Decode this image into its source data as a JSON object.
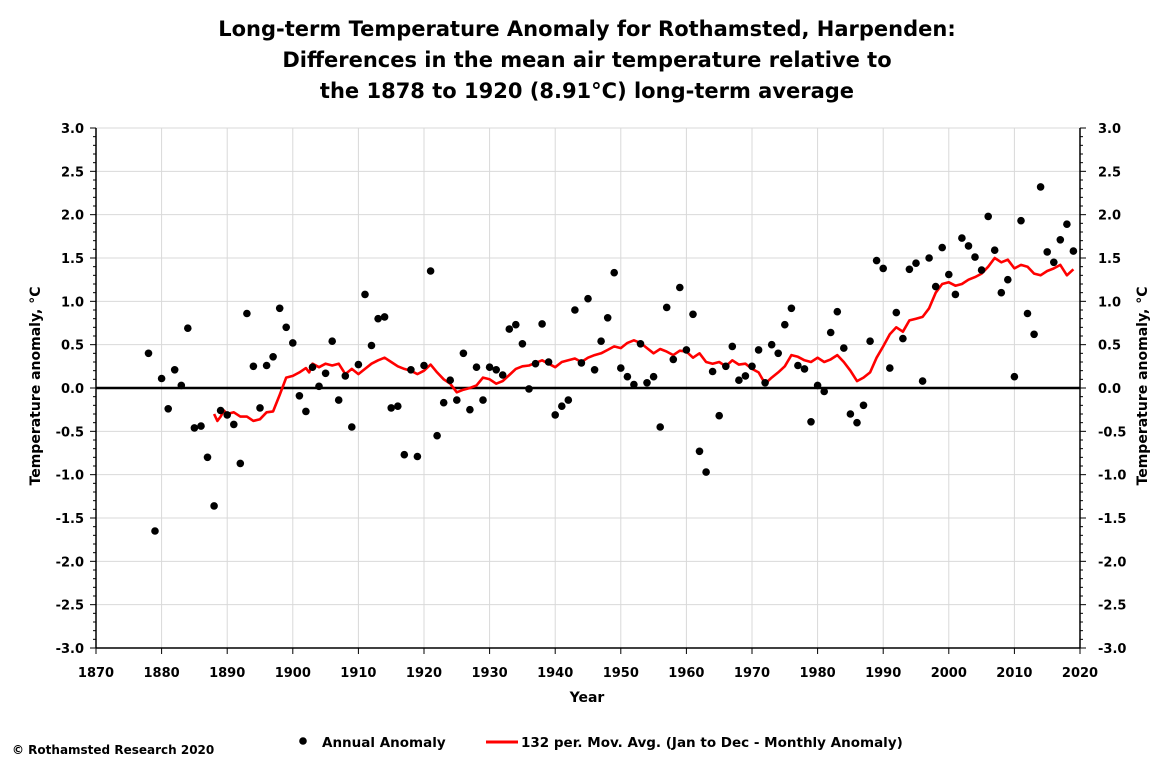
{
  "chart_data": {
    "type": "scatter",
    "title_lines": [
      "Long-term Temperature Anomaly for Rothamsted, Harpenden:",
      "Differences in the mean air temperature relative to",
      "the 1878 to 1920 (8.91°C) long-term average"
    ],
    "xlabel": "Year",
    "ylabel": "Temperature anomaly, °C",
    "xlim": [
      1870,
      2020
    ],
    "ylim": [
      -3.0,
      3.0
    ],
    "x_ticks": [
      "1870",
      "1880",
      "1890",
      "1900",
      "1910",
      "1920",
      "1930",
      "1940",
      "1950",
      "1960",
      "1970",
      "1980",
      "1990",
      "2000",
      "2010",
      "2020"
    ],
    "y_ticks": [
      "3.0",
      "2.5",
      "2.0",
      "1.5",
      "1.0",
      "0.5",
      "0.0",
      "-0.5",
      "-1.0",
      "-1.5",
      "-2.0",
      "-2.5",
      "-3.0"
    ],
    "grid": true,
    "legend_placement": "bottom",
    "colors": {
      "points": "#000000",
      "moving_average": "#ff0000",
      "grid": "#d9d9d9",
      "zero_line": "#000000"
    },
    "series": [
      {
        "name": "Annual Anomaly",
        "kind": "scatter",
        "points": [
          [
            1878,
            0.4
          ],
          [
            1879,
            -1.65
          ],
          [
            1880,
            0.11
          ],
          [
            1881,
            -0.24
          ],
          [
            1882,
            0.21
          ],
          [
            1883,
            0.03
          ],
          [
            1884,
            0.69
          ],
          [
            1885,
            -0.46
          ],
          [
            1886,
            -0.44
          ],
          [
            1887,
            -0.8
          ],
          [
            1888,
            -1.36
          ],
          [
            1889,
            -0.26
          ],
          [
            1890,
            -0.31
          ],
          [
            1891,
            -0.42
          ],
          [
            1892,
            -0.87
          ],
          [
            1893,
            0.86
          ],
          [
            1894,
            0.25
          ],
          [
            1895,
            -0.23
          ],
          [
            1896,
            0.26
          ],
          [
            1897,
            0.36
          ],
          [
            1898,
            0.92
          ],
          [
            1899,
            0.7
          ],
          [
            1900,
            0.52
          ],
          [
            1901,
            -0.09
          ],
          [
            1902,
            -0.27
          ],
          [
            1903,
            0.24
          ],
          [
            1904,
            0.02
          ],
          [
            1905,
            0.17
          ],
          [
            1906,
            0.54
          ],
          [
            1907,
            -0.14
          ],
          [
            1908,
            0.14
          ],
          [
            1909,
            -0.45
          ],
          [
            1910,
            0.27
          ],
          [
            1911,
            1.08
          ],
          [
            1912,
            0.49
          ],
          [
            1913,
            0.8
          ],
          [
            1914,
            0.82
          ],
          [
            1915,
            -0.23
          ],
          [
            1916,
            -0.21
          ],
          [
            1917,
            -0.77
          ],
          [
            1918,
            0.21
          ],
          [
            1919,
            -0.79
          ],
          [
            1920,
            0.26
          ],
          [
            1921,
            1.35
          ],
          [
            1922,
            -0.55
          ],
          [
            1923,
            -0.17
          ],
          [
            1924,
            0.09
          ],
          [
            1925,
            -0.14
          ],
          [
            1926,
            0.4
          ],
          [
            1927,
            -0.25
          ],
          [
            1928,
            0.24
          ],
          [
            1929,
            -0.14
          ],
          [
            1930,
            0.24
          ],
          [
            1931,
            0.21
          ],
          [
            1932,
            0.15
          ],
          [
            1933,
            0.68
          ],
          [
            1934,
            0.73
          ],
          [
            1935,
            0.51
          ],
          [
            1936,
            -0.01
          ],
          [
            1937,
            0.28
          ],
          [
            1938,
            0.74
          ],
          [
            1939,
            0.3
          ],
          [
            1940,
            -0.31
          ],
          [
            1941,
            -0.21
          ],
          [
            1942,
            -0.14
          ],
          [
            1943,
            0.9
          ],
          [
            1944,
            0.29
          ],
          [
            1945,
            1.03
          ],
          [
            1946,
            0.21
          ],
          [
            1947,
            0.54
          ],
          [
            1948,
            0.81
          ],
          [
            1949,
            1.33
          ],
          [
            1950,
            0.23
          ],
          [
            1951,
            0.13
          ],
          [
            1952,
            0.04
          ],
          [
            1953,
            0.51
          ],
          [
            1954,
            0.06
          ],
          [
            1955,
            0.13
          ],
          [
            1956,
            -0.45
          ],
          [
            1957,
            0.93
          ],
          [
            1958,
            0.33
          ],
          [
            1959,
            1.16
          ],
          [
            1960,
            0.44
          ],
          [
            1961,
            0.85
          ],
          [
            1962,
            -0.73
          ],
          [
            1963,
            -0.97
          ],
          [
            1964,
            0.19
          ],
          [
            1965,
            -0.32
          ],
          [
            1966,
            0.25
          ],
          [
            1967,
            0.48
          ],
          [
            1968,
            0.09
          ],
          [
            1969,
            0.14
          ],
          [
            1970,
            0.25
          ],
          [
            1971,
            0.44
          ],
          [
            1972,
            0.06
          ],
          [
            1973,
            0.5
          ],
          [
            1974,
            0.4
          ],
          [
            1975,
            0.73
          ],
          [
            1976,
            0.92
          ],
          [
            1977,
            0.26
          ],
          [
            1978,
            0.22
          ],
          [
            1979,
            -0.39
          ],
          [
            1980,
            0.03
          ],
          [
            1981,
            -0.04
          ],
          [
            1982,
            0.64
          ],
          [
            1983,
            0.88
          ],
          [
            1984,
            0.46
          ],
          [
            1985,
            -0.3
          ],
          [
            1986,
            -0.4
          ],
          [
            1987,
            -0.2
          ],
          [
            1988,
            0.54
          ],
          [
            1989,
            1.47
          ],
          [
            1990,
            1.38
          ],
          [
            1991,
            0.23
          ],
          [
            1992,
            0.87
          ],
          [
            1993,
            0.57
          ],
          [
            1994,
            1.37
          ],
          [
            1995,
            1.44
          ],
          [
            1996,
            0.08
          ],
          [
            1997,
            1.5
          ],
          [
            1998,
            1.17
          ],
          [
            1999,
            1.62
          ],
          [
            2000,
            1.31
          ],
          [
            2001,
            1.08
          ],
          [
            2002,
            1.73
          ],
          [
            2003,
            1.64
          ],
          [
            2004,
            1.51
          ],
          [
            2005,
            1.36
          ],
          [
            2006,
            1.98
          ],
          [
            2007,
            1.59
          ],
          [
            2008,
            1.1
          ],
          [
            2009,
            1.25
          ],
          [
            2010,
            0.13
          ],
          [
            2011,
            1.93
          ],
          [
            2012,
            0.86
          ],
          [
            2013,
            0.62
          ],
          [
            2014,
            2.32
          ],
          [
            2015,
            1.57
          ],
          [
            2016,
            1.45
          ],
          [
            2017,
            1.71
          ],
          [
            2018,
            1.89
          ],
          [
            2019,
            1.58
          ]
        ]
      },
      {
        "name": "132 per. Mov. Avg. (Jan to Dec - Monthly Anomaly)",
        "kind": "line",
        "points": [
          [
            1888.0,
            -0.3
          ],
          [
            1888.5,
            -0.38
          ],
          [
            1889.0,
            -0.33
          ],
          [
            1889.5,
            -0.26
          ],
          [
            1890.0,
            -0.3
          ],
          [
            1891.0,
            -0.28
          ],
          [
            1892.0,
            -0.33
          ],
          [
            1893.0,
            -0.33
          ],
          [
            1894.0,
            -0.38
          ],
          [
            1895.0,
            -0.36
          ],
          [
            1896.0,
            -0.28
          ],
          [
            1897.0,
            -0.27
          ],
          [
            1898.0,
            -0.08
          ],
          [
            1899.0,
            0.12
          ],
          [
            1900.0,
            0.14
          ],
          [
            1901.0,
            0.18
          ],
          [
            1902.0,
            0.23
          ],
          [
            1902.5,
            0.18
          ],
          [
            1903.0,
            0.28
          ],
          [
            1904.0,
            0.24
          ],
          [
            1905.0,
            0.28
          ],
          [
            1906.0,
            0.26
          ],
          [
            1907.0,
            0.28
          ],
          [
            1908.0,
            0.16
          ],
          [
            1909.0,
            0.22
          ],
          [
            1910.0,
            0.16
          ],
          [
            1911.0,
            0.22
          ],
          [
            1912.0,
            0.28
          ],
          [
            1913.0,
            0.32
          ],
          [
            1914.0,
            0.35
          ],
          [
            1915.0,
            0.3
          ],
          [
            1916.0,
            0.25
          ],
          [
            1917.0,
            0.22
          ],
          [
            1918.0,
            0.2
          ],
          [
            1919.0,
            0.16
          ],
          [
            1920.0,
            0.2
          ],
          [
            1921.0,
            0.27
          ],
          [
            1922.0,
            0.18
          ],
          [
            1923.0,
            0.1
          ],
          [
            1924.0,
            0.05
          ],
          [
            1925.0,
            -0.05
          ],
          [
            1926.0,
            -0.02
          ],
          [
            1927.0,
            0.0
          ],
          [
            1928.0,
            0.03
          ],
          [
            1929.0,
            0.12
          ],
          [
            1930.0,
            0.1
          ],
          [
            1931.0,
            0.05
          ],
          [
            1932.0,
            0.08
          ],
          [
            1933.0,
            0.15
          ],
          [
            1934.0,
            0.22
          ],
          [
            1935.0,
            0.25
          ],
          [
            1936.0,
            0.26
          ],
          [
            1937.0,
            0.29
          ],
          [
            1938.0,
            0.32
          ],
          [
            1939.0,
            0.28
          ],
          [
            1940.0,
            0.24
          ],
          [
            1941.0,
            0.3
          ],
          [
            1942.0,
            0.32
          ],
          [
            1943.0,
            0.34
          ],
          [
            1944.0,
            0.3
          ],
          [
            1945.0,
            0.35
          ],
          [
            1946.0,
            0.38
          ],
          [
            1947.0,
            0.4
          ],
          [
            1948.0,
            0.44
          ],
          [
            1949.0,
            0.48
          ],
          [
            1950.0,
            0.46
          ],
          [
            1951.0,
            0.52
          ],
          [
            1952.0,
            0.55
          ],
          [
            1953.0,
            0.52
          ],
          [
            1954.0,
            0.46
          ],
          [
            1955.0,
            0.4
          ],
          [
            1956.0,
            0.45
          ],
          [
            1957.0,
            0.42
          ],
          [
            1958.0,
            0.38
          ],
          [
            1959.0,
            0.43
          ],
          [
            1960.0,
            0.42
          ],
          [
            1961.0,
            0.35
          ],
          [
            1962.0,
            0.4
          ],
          [
            1963.0,
            0.3
          ],
          [
            1964.0,
            0.28
          ],
          [
            1965.0,
            0.3
          ],
          [
            1966.0,
            0.25
          ],
          [
            1967.0,
            0.32
          ],
          [
            1968.0,
            0.27
          ],
          [
            1969.0,
            0.28
          ],
          [
            1970.0,
            0.22
          ],
          [
            1971.0,
            0.18
          ],
          [
            1972.0,
            0.05
          ],
          [
            1973.0,
            0.12
          ],
          [
            1974.0,
            0.18
          ],
          [
            1975.0,
            0.25
          ],
          [
            1976.0,
            0.38
          ],
          [
            1977.0,
            0.36
          ],
          [
            1978.0,
            0.32
          ],
          [
            1979.0,
            0.3
          ],
          [
            1980.0,
            0.35
          ],
          [
            1981.0,
            0.3
          ],
          [
            1982.0,
            0.33
          ],
          [
            1983.0,
            0.38
          ],
          [
            1984.0,
            0.3
          ],
          [
            1985.0,
            0.2
          ],
          [
            1986.0,
            0.08
          ],
          [
            1987.0,
            0.12
          ],
          [
            1988.0,
            0.18
          ],
          [
            1989.0,
            0.35
          ],
          [
            1990.0,
            0.48
          ],
          [
            1991.0,
            0.62
          ],
          [
            1992.0,
            0.7
          ],
          [
            1993.0,
            0.65
          ],
          [
            1994.0,
            0.78
          ],
          [
            1995.0,
            0.8
          ],
          [
            1996.0,
            0.82
          ],
          [
            1997.0,
            0.92
          ],
          [
            1998.0,
            1.1
          ],
          [
            1999.0,
            1.2
          ],
          [
            2000.0,
            1.22
          ],
          [
            2001.0,
            1.18
          ],
          [
            2002.0,
            1.2
          ],
          [
            2003.0,
            1.25
          ],
          [
            2004.0,
            1.28
          ],
          [
            2005.0,
            1.32
          ],
          [
            2006.0,
            1.4
          ],
          [
            2007.0,
            1.5
          ],
          [
            2008.0,
            1.45
          ],
          [
            2009.0,
            1.48
          ],
          [
            2010.0,
            1.38
          ],
          [
            2011.0,
            1.42
          ],
          [
            2012.0,
            1.4
          ],
          [
            2013.0,
            1.32
          ],
          [
            2014.0,
            1.3
          ],
          [
            2015.0,
            1.35
          ],
          [
            2016.0,
            1.38
          ],
          [
            2017.0,
            1.42
          ],
          [
            2018.0,
            1.3
          ],
          [
            2019.0,
            1.37
          ]
        ]
      }
    ]
  },
  "footer": {
    "copyright": "© Rothamsted Research 2020"
  }
}
